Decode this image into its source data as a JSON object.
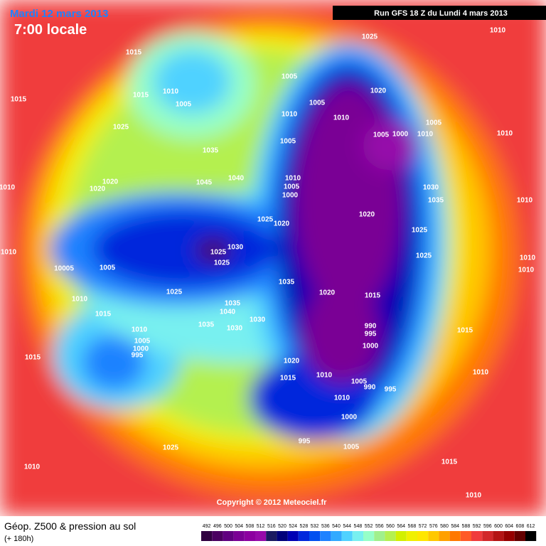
{
  "header": {
    "date": "Mardi 12 mars 2013",
    "time": "7:00 locale",
    "run": "Run GFS 18 Z du Lundi 4 mars 2013"
  },
  "copyright": "Copyright © 2012 Meteociel.fr",
  "footer": {
    "title": "Géop. Z500 & pression au sol",
    "lead": "(+ 180h)"
  },
  "colorbar": {
    "labels": [
      492,
      496,
      500,
      504,
      508,
      512,
      516,
      520,
      524,
      528,
      532,
      536,
      540,
      544,
      548,
      552,
      556,
      560,
      564,
      568,
      572,
      576,
      580,
      584,
      588,
      592,
      596,
      600,
      604,
      608,
      612
    ],
    "colors": [
      "#300040",
      "#4a0060",
      "#600080",
      "#7a0095",
      "#8c00a0",
      "#960aaa",
      "#1a1a60",
      "#00007a",
      "#0000b4",
      "#0028dc",
      "#0050f0",
      "#1e82ff",
      "#32aaff",
      "#50d2ff",
      "#78f0f0",
      "#96ffc8",
      "#a0f08c",
      "#b4f050",
      "#d2f000",
      "#f0f000",
      "#ffe600",
      "#ffc800",
      "#ffa000",
      "#ff7800",
      "#ff5a28",
      "#f03c3c",
      "#d2282a",
      "#b41414",
      "#960000",
      "#640000",
      "#000000"
    ]
  },
  "isobar_labels": [
    "1010",
    "1025",
    "1015",
    "1010",
    "1015",
    "1005",
    "1015",
    "1025",
    "1005",
    "1005",
    "1010",
    "1010",
    "1020",
    "1005",
    "1000",
    "1010",
    "1005",
    "1010",
    "1005",
    "1035",
    "1040",
    "1045",
    "1010",
    "1005",
    "1000",
    "1020",
    "1020",
    "1010",
    "1030",
    "1035",
    "1010",
    "1020",
    "1025",
    "1020",
    "1025",
    "1030",
    "1025",
    "1025",
    "1010",
    "1025",
    "1005",
    "10005",
    "1035",
    "1025",
    "1020",
    "1015",
    "1010",
    "1035",
    "1040",
    "1015",
    "1030",
    "990",
    "995",
    "1035",
    "1030",
    "1015",
    "1010",
    "1005",
    "1000",
    "995",
    "1000",
    "1015",
    "1020",
    "1010",
    "1015",
    "1005",
    "990",
    "995",
    "1010",
    "1010",
    "1000",
    "995",
    "1005",
    "1025",
    "1010",
    "1015",
    "1010",
    "1010",
    "1010"
  ]
}
